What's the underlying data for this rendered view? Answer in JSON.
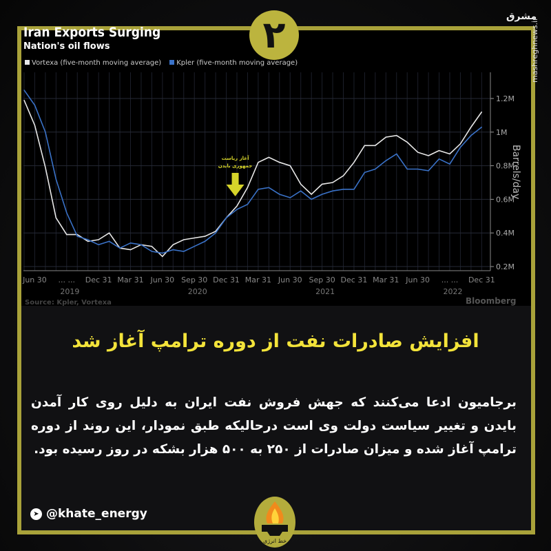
{
  "badge_number": "۲",
  "watermark": {
    "site": "mashreghnews.ir",
    "logo_text": "مشرق"
  },
  "chart_data": {
    "type": "line",
    "title": "Iran Exports Surging",
    "subtitle": "Nation's oil flows",
    "ylabel": "Barrels/day",
    "ylim": [
      0.15,
      1.35
    ],
    "y_ticks": [
      {
        "v": 0.2,
        "label": "0.2M"
      },
      {
        "v": 0.4,
        "label": "0.4M"
      },
      {
        "v": 0.6,
        "label": "0.6M"
      },
      {
        "v": 0.8,
        "label": "0.8M"
      },
      {
        "v": 1.0,
        "label": "1M"
      },
      {
        "v": 1.2,
        "label": "1.2M"
      }
    ],
    "x_tick_labels": [
      {
        "m": 1,
        "label": "Jun 30"
      },
      {
        "m": 4,
        "label": "... ..."
      },
      {
        "m": 7,
        "label": "Dec 31"
      },
      {
        "m": 10,
        "label": "Mar 31"
      },
      {
        "m": 13,
        "label": "Jun 30"
      },
      {
        "m": 16,
        "label": "Sep 30"
      },
      {
        "m": 19,
        "label": "Dec 31"
      },
      {
        "m": 22,
        "label": "Mar 31"
      },
      {
        "m": 25,
        "label": "Jun 30"
      },
      {
        "m": 28,
        "label": "Sep 30"
      },
      {
        "m": 31,
        "label": "Dec 31"
      },
      {
        "m": 34,
        "label": "Mar 31"
      },
      {
        "m": 37,
        "label": "Jun 30"
      },
      {
        "m": 40,
        "label": "... ..."
      },
      {
        "m": 43,
        "label": "Dec 31"
      }
    ],
    "year_labels": [
      {
        "m": 3,
        "label": "2019"
      },
      {
        "m": 15,
        "label": "2020"
      },
      {
        "m": 27,
        "label": "2021"
      },
      {
        "m": 39,
        "label": "2022"
      }
    ],
    "x_start": "2019-05",
    "x_end": "2022-12",
    "grid": true,
    "legend_position": "top-left",
    "series": [
      {
        "name": "Vortexa (five-month moving average)",
        "color": "#e8e8e8",
        "values": [
          1.19,
          1.04,
          0.79,
          0.49,
          0.39,
          0.39,
          0.35,
          0.36,
          0.4,
          0.31,
          0.3,
          0.33,
          0.32,
          0.26,
          0.33,
          0.36,
          0.37,
          0.38,
          0.41,
          0.49,
          0.56,
          0.67,
          0.82,
          0.85,
          0.82,
          0.8,
          0.69,
          0.63,
          0.69,
          0.7,
          0.74,
          0.82,
          0.92,
          0.92,
          0.97,
          0.98,
          0.94,
          0.88,
          0.86,
          0.89,
          0.87,
          0.93,
          1.03,
          1.12
        ]
      },
      {
        "name": "Kpler (five-month moving average)",
        "color": "#3a72c8",
        "values": [
          1.25,
          1.16,
          1.0,
          0.72,
          0.52,
          0.38,
          0.36,
          0.33,
          0.35,
          0.31,
          0.34,
          0.33,
          0.29,
          0.28,
          0.3,
          0.29,
          0.32,
          0.35,
          0.4,
          0.49,
          0.54,
          0.57,
          0.66,
          0.67,
          0.63,
          0.61,
          0.65,
          0.6,
          0.63,
          0.65,
          0.66,
          0.66,
          0.76,
          0.78,
          0.83,
          0.87,
          0.78,
          0.78,
          0.77,
          0.84,
          0.81,
          0.91,
          0.98,
          1.03
        ]
      }
    ],
    "annotation": {
      "text_line1": "آغاز ریاست",
      "text_line2": "جمهوری بایدن",
      "month_index": 19,
      "color": "#d6d42a"
    },
    "source": "Source: Kpler, Vortexa",
    "brand": "Bloomberg"
  },
  "headline": "افزایش صادرات نفت از دوره ترامپ آغاز شد",
  "body": "برجامیون ادعا می‌کنند که جهش فروش نفت ایران به دلیل روی کار آمدن بایدن و تغییر سیاست دولت وی است درحالیکه طبق نمودار، این روند از دوره ترامپ آغاز شده و میزان صادرات از ۲۵۰ به ۵۰۰ هزار بشکه در روز رسیده بود.",
  "footer": {
    "handle": "@khate_energy",
    "logo_text": "خط انرژی"
  },
  "colors": {
    "frame": "#a9a23a",
    "headline": "#f3e33a",
    "vortexa": "#e8e8e8",
    "kpler": "#3a72c8"
  }
}
